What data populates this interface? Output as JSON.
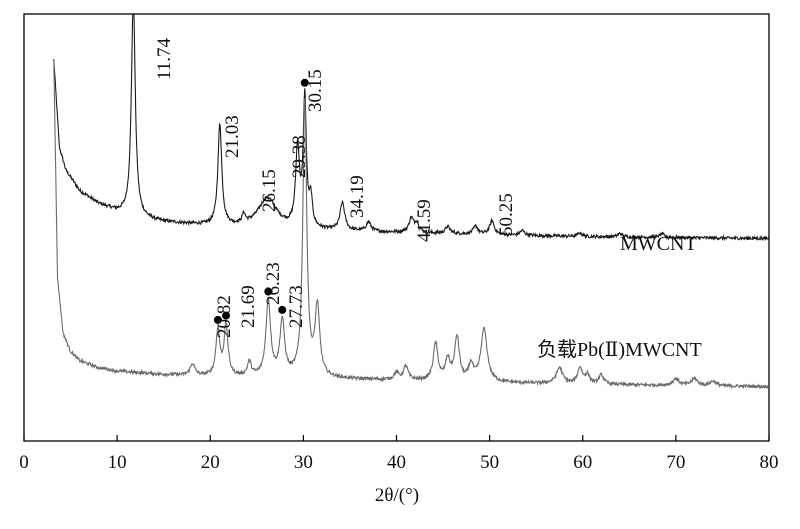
{
  "chart_data": {
    "type": "line",
    "title": "",
    "xlabel": "2θ/(°)",
    "ylabel": "",
    "xlim": [
      0,
      80
    ],
    "xticks": [
      0,
      10,
      20,
      30,
      40,
      50,
      60,
      70,
      80
    ],
    "grid": false,
    "legend": "inline labels at right of each trace",
    "colors": {
      "MWCNT": "#1a1a1a",
      "loaded": "#6b6b6b"
    },
    "series": [
      {
        "name": "MWCNT",
        "baseline": [
          [
            3.2,
            900
          ],
          [
            3.8,
            520
          ],
          [
            4.5,
            420
          ],
          [
            6,
            330
          ],
          [
            8,
            275
          ],
          [
            10,
            240
          ],
          [
            12,
            215
          ],
          [
            15,
            195
          ],
          [
            20,
            178
          ],
          [
            25,
            170
          ],
          [
            30,
            160
          ],
          [
            40,
            150
          ],
          [
            50,
            140
          ],
          [
            60,
            132
          ],
          [
            70,
            128
          ],
          [
            80,
            124
          ]
        ],
        "peaks": [
          {
            "x": 11.74,
            "h": 950,
            "w": 0.25
          },
          {
            "x": 21.03,
            "h": 440,
            "w": 0.25
          },
          {
            "x": 23.6,
            "h": 40,
            "w": 0.2
          },
          {
            "x": 26.15,
            "h": 130,
            "w": 1.2
          },
          {
            "x": 29.38,
            "h": 340,
            "w": 0.25
          },
          {
            "x": 30.15,
            "h": 560,
            "w": 0.2
          },
          {
            "x": 30.8,
            "h": 120,
            "w": 0.2
          },
          {
            "x": 34.19,
            "h": 120,
            "w": 0.3
          },
          {
            "x": 37.0,
            "h": 40,
            "w": 0.3
          },
          {
            "x": 41.59,
            "h": 60,
            "w": 0.3
          },
          {
            "x": 42.2,
            "h": 40,
            "w": 0.3
          },
          {
            "x": 45.5,
            "h": 30,
            "w": 0.3
          },
          {
            "x": 48.5,
            "h": 35,
            "w": 0.3
          },
          {
            "x": 50.25,
            "h": 60,
            "w": 0.3
          },
          {
            "x": 53.5,
            "h": 20,
            "w": 0.3
          },
          {
            "x": 59.7,
            "h": 15,
            "w": 0.3
          },
          {
            "x": 64,
            "h": 15,
            "w": 0.3
          },
          {
            "x": 68.5,
            "h": 15,
            "w": 0.3
          }
        ]
      },
      {
        "name": "负载Pb(Ⅱ)MWCNT",
        "baseline": [
          [
            3.2,
            1450
          ],
          [
            3.6,
            500
          ],
          [
            4.2,
            260
          ],
          [
            5,
            180
          ],
          [
            6,
            140
          ],
          [
            8,
            110
          ],
          [
            10,
            95
          ],
          [
            15,
            80
          ],
          [
            20,
            72
          ],
          [
            30,
            65
          ],
          [
            40,
            55
          ],
          [
            50,
            45
          ],
          [
            60,
            38
          ],
          [
            70,
            32
          ],
          [
            80,
            28
          ]
        ],
        "peaks": [
          {
            "x": 18.1,
            "h": 50,
            "w": 0.3
          },
          {
            "x": 20.82,
            "h": 200,
            "w": 0.25
          },
          {
            "x": 21.69,
            "h": 220,
            "w": 0.25
          },
          {
            "x": 24.2,
            "h": 60,
            "w": 0.25
          },
          {
            "x": 26.23,
            "h": 330,
            "w": 0.3
          },
          {
            "x": 27.73,
            "h": 240,
            "w": 0.3
          },
          {
            "x": 30.15,
            "h": 1200,
            "w": 0.25
          },
          {
            "x": 31.5,
            "h": 300,
            "w": 0.3
          },
          {
            "x": 40.0,
            "h": 30,
            "w": 0.3
          },
          {
            "x": 41.0,
            "h": 60,
            "w": 0.3
          },
          {
            "x": 44.2,
            "h": 160,
            "w": 0.3
          },
          {
            "x": 45.5,
            "h": 90,
            "w": 0.3
          },
          {
            "x": 46.5,
            "h": 190,
            "w": 0.3
          },
          {
            "x": 48.0,
            "h": 70,
            "w": 0.3
          },
          {
            "x": 49.4,
            "h": 230,
            "w": 0.4
          },
          {
            "x": 57.5,
            "h": 70,
            "w": 0.4
          },
          {
            "x": 59.7,
            "h": 70,
            "w": 0.3
          },
          {
            "x": 60.5,
            "h": 40,
            "w": 0.3
          },
          {
            "x": 62.0,
            "h": 40,
            "w": 0.3
          },
          {
            "x": 70.0,
            "h": 30,
            "w": 0.4
          },
          {
            "x": 72.0,
            "h": 30,
            "w": 0.4
          },
          {
            "x": 74.0,
            "h": 20,
            "w": 0.4
          }
        ]
      }
    ],
    "annotations": {
      "MWCNT": [
        "11.74",
        "21.03",
        "26.15",
        "29.38",
        "30.15",
        "34.19",
        "41.59",
        "50.25"
      ],
      "loaded": [
        "20.82",
        "21.69",
        "26.23",
        "27.73"
      ]
    },
    "markers": [
      {
        "series": "MWCNT",
        "x": 30.15,
        "symbol": "dot"
      },
      {
        "series": "loaded",
        "x": 20.82,
        "symbol": "dot"
      },
      {
        "series": "loaded",
        "x": 21.69,
        "symbol": "dot"
      },
      {
        "series": "loaded",
        "x": 26.23,
        "symbol": "dot"
      },
      {
        "series": "loaded",
        "x": 27.73,
        "symbol": "dot"
      }
    ]
  }
}
